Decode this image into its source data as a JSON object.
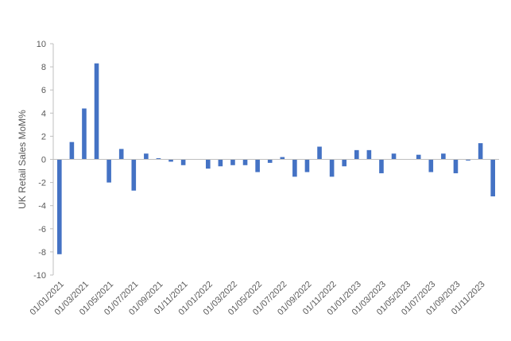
{
  "chart_data": {
    "type": "bar",
    "title": "",
    "xlabel": "",
    "ylabel": "UK Retail Sales MoM%",
    "ylim": [
      -10,
      10
    ],
    "y_ticks": [
      -10,
      -8,
      -6,
      -4,
      -2,
      0,
      2,
      4,
      6,
      8,
      10
    ],
    "grid": false,
    "legend": "none",
    "bar_color": "#4472c4",
    "axis_color": "#bfbfbf",
    "text_color": "#595959",
    "x_tick_labels": [
      "01/01/2021",
      "01/03/2021",
      "01/05/2021",
      "01/07/2021",
      "01/09/2021",
      "01/11/2021",
      "01/01/2022",
      "01/03/2022",
      "01/05/2022",
      "01/07/2022",
      "01/09/2022",
      "01/11/2022",
      "01/01/2023",
      "01/03/2023",
      "01/05/2023",
      "01/07/2023",
      "01/09/2023",
      "01/11/2023"
    ],
    "categories": [
      "01/01/2021",
      "01/02/2021",
      "01/03/2021",
      "01/04/2021",
      "01/05/2021",
      "01/06/2021",
      "01/07/2021",
      "01/08/2021",
      "01/09/2021",
      "01/10/2021",
      "01/11/2021",
      "01/12/2021",
      "01/01/2022",
      "01/02/2022",
      "01/03/2022",
      "01/04/2022",
      "01/05/2022",
      "01/06/2022",
      "01/07/2022",
      "01/08/2022",
      "01/09/2022",
      "01/10/2022",
      "01/11/2022",
      "01/12/2022",
      "01/01/2023",
      "01/02/2023",
      "01/03/2023",
      "01/04/2023",
      "01/05/2023",
      "01/06/2023",
      "01/07/2023",
      "01/08/2023",
      "01/09/2023",
      "01/10/2023",
      "01/11/2023",
      "01/12/2023"
    ],
    "values": [
      -8.2,
      1.5,
      4.4,
      8.3,
      -2.0,
      0.9,
      -2.7,
      0.5,
      0.1,
      -0.2,
      -0.5,
      0.0,
      -0.8,
      -0.6,
      -0.5,
      -0.5,
      -1.1,
      -0.3,
      0.2,
      -1.5,
      -1.1,
      1.1,
      -1.5,
      -0.6,
      0.8,
      0.8,
      -1.2,
      0.5,
      0.0,
      0.4,
      -1.1,
      0.5,
      -1.2,
      -0.1,
      1.4,
      -3.2
    ]
  }
}
